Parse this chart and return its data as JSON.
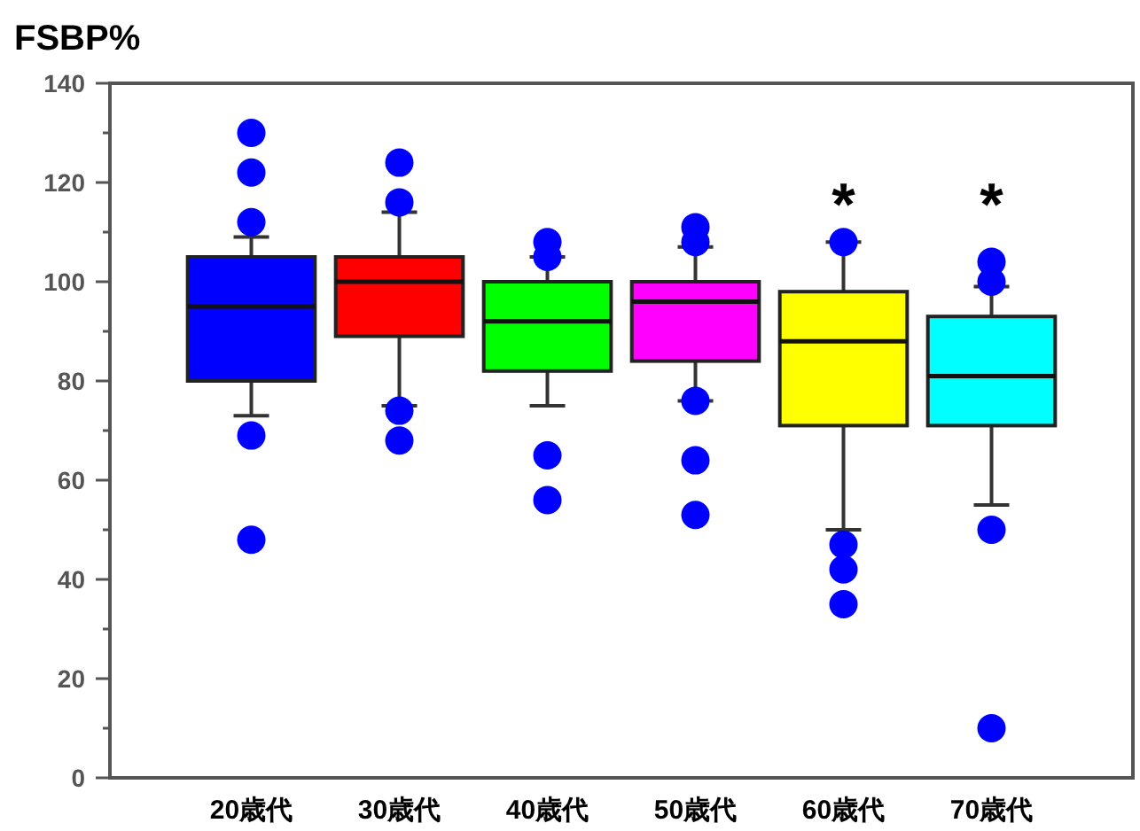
{
  "chart_data": {
    "type": "box",
    "ylabel": "FSBP%",
    "categories": [
      "20歳代",
      "30歳代",
      "40歳代",
      "50歳代",
      "60歳代",
      "70歳代"
    ],
    "colors": [
      "#0000ff",
      "#ff0000",
      "#00ff00",
      "#ff00ff",
      "#ffff00",
      "#00ffff"
    ],
    "boxes": [
      {
        "low": 73,
        "q1": 80,
        "median": 95,
        "q3": 105,
        "high": 109,
        "outliers": [
          130,
          122,
          112,
          69,
          48
        ]
      },
      {
        "low": 75,
        "q1": 89,
        "median": 100,
        "q3": 105,
        "high": 114,
        "outliers": [
          124,
          116,
          74,
          68
        ]
      },
      {
        "low": 75,
        "q1": 82,
        "median": 92,
        "q3": 100,
        "high": 105,
        "outliers": [
          108,
          105,
          65,
          56
        ]
      },
      {
        "low": 76,
        "q1": 84,
        "median": 96,
        "q3": 100,
        "high": 107,
        "outliers": [
          111,
          108,
          76,
          64,
          53
        ]
      },
      {
        "low": 50,
        "q1": 71,
        "median": 88,
        "q3": 98,
        "high": 108,
        "outliers": [
          108,
          47,
          42,
          35
        ]
      },
      {
        "low": 55,
        "q1": 71,
        "median": 81,
        "q3": 93,
        "high": 99,
        "outliers": [
          104,
          100,
          50,
          10
        ]
      }
    ],
    "ylim": [
      0,
      140
    ],
    "yticks": [
      0,
      {
        "value": 10,
        "label": null
      },
      20,
      {
        "value": 30,
        "label": null
      },
      40,
      {
        "value": 50,
        "label": null
      },
      60,
      {
        "value": 70,
        "label": null
      },
      80,
      {
        "value": 90,
        "label": null
      },
      100,
      {
        "value": 110,
        "label": null
      },
      120,
      {
        "value": 130,
        "label": null
      },
      140
    ],
    "grid": false,
    "annotations": [
      "*",
      "*"
    ]
  }
}
